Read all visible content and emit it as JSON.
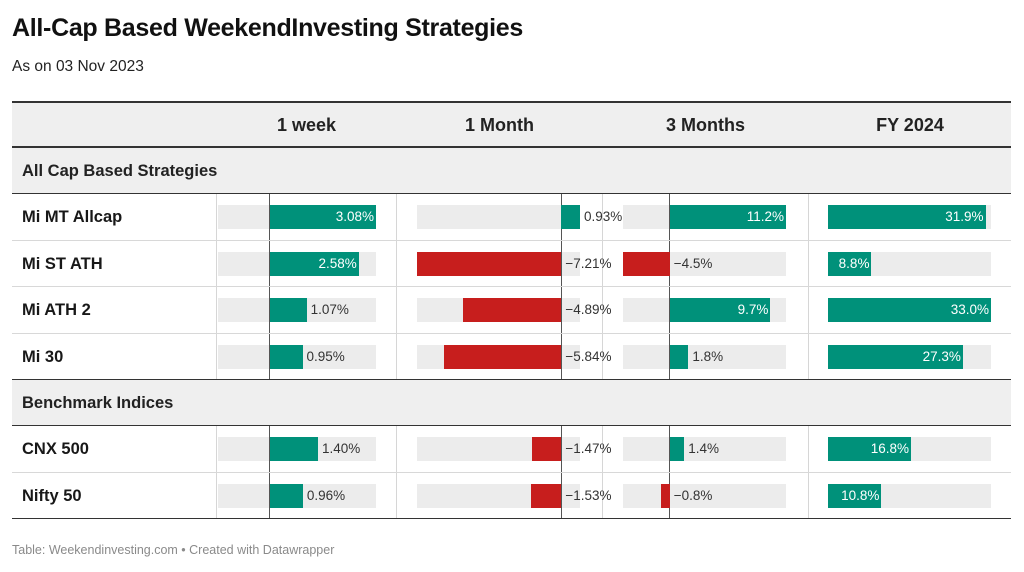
{
  "title": "All-Cap Based WeekendInvesting Strategies",
  "subtitle": "As on 03 Nov 2023",
  "footer": "Table: Weekendinvesting.com • Created with Datawrapper",
  "colors": {
    "positive": "#00917a",
    "negative": "#c71e1d",
    "track": "#ececec",
    "header_bg": "#efefef"
  },
  "chart_data": {
    "type": "table",
    "columns": [
      "1 week",
      "1 Month",
      "3 Months",
      "FY 2024"
    ],
    "column_ranges": [
      [
        -1.5,
        3.08
      ],
      [
        -7.21,
        0.93
      ],
      [
        -4.5,
        11.2
      ],
      [
        0,
        33.0
      ]
    ],
    "groups": [
      {
        "label": "All Cap Based Strategies",
        "rows": [
          {
            "name": "Mi MT Allcap",
            "values": [
              3.08,
              0.93,
              11.2,
              31.9
            ],
            "labels": [
              "3.08%",
              "0.93%",
              "11.2%",
              "31.9%"
            ]
          },
          {
            "name": "Mi ST ATH",
            "values": [
              2.58,
              -7.21,
              -4.5,
              8.8
            ],
            "labels": [
              "2.58%",
              "−7.21%",
              "−4.5%",
              "8.8%"
            ]
          },
          {
            "name": "Mi ATH 2",
            "values": [
              1.07,
              -4.89,
              9.7,
              33.0
            ],
            "labels": [
              "1.07%",
              "−4.89%",
              "9.7%",
              "33.0%"
            ]
          },
          {
            "name": "Mi 30",
            "values": [
              0.95,
              -5.84,
              1.8,
              27.3
            ],
            "labels": [
              "0.95%",
              "−5.84%",
              "1.8%",
              "27.3%"
            ]
          }
        ]
      },
      {
        "label": "Benchmark Indices",
        "rows": [
          {
            "name": "CNX 500",
            "values": [
              1.4,
              -1.47,
              1.4,
              16.8
            ],
            "labels": [
              "1.40%",
              "−1.47%",
              "1.4%",
              "16.8%"
            ]
          },
          {
            "name": "Nifty 50",
            "values": [
              0.96,
              -1.53,
              -0.8,
              10.8
            ],
            "labels": [
              "0.96%",
              "−1.53%",
              "−0.8%",
              "10.8%"
            ]
          }
        ]
      }
    ]
  }
}
